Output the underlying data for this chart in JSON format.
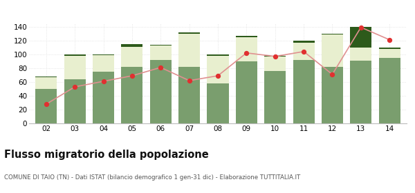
{
  "years": [
    "02",
    "03",
    "04",
    "05",
    "06",
    "07",
    "08",
    "09",
    "10",
    "11",
    "12",
    "13",
    "14"
  ],
  "altri_comuni": [
    50,
    64,
    75,
    82,
    92,
    82,
    58,
    90,
    76,
    92,
    82,
    91,
    95
  ],
  "estero": [
    17,
    34,
    24,
    29,
    21,
    48,
    40,
    35,
    21,
    25,
    47,
    19,
    13
  ],
  "altri": [
    1,
    2,
    1,
    4,
    1,
    2,
    2,
    2,
    1,
    3,
    1,
    30,
    2
  ],
  "cancellati": [
    28,
    53,
    61,
    69,
    81,
    62,
    69,
    102,
    97,
    104,
    71,
    139,
    121
  ],
  "color_altri_comuni": "#7a9e6e",
  "color_estero": "#e8efcf",
  "color_altri": "#2d5a1b",
  "color_cancellati": "#e03030",
  "color_line": "#e09090",
  "title": "Flusso migratorio della popolazione",
  "subtitle": "COMUNE DI TAIO (TN) - Dati ISTAT (bilancio demografico 1 gen-31 dic) - Elaborazione TUTTITALIA.IT",
  "ylim": [
    0,
    145
  ],
  "yticks": [
    0,
    20,
    40,
    60,
    80,
    100,
    120,
    140
  ],
  "bar_width": 0.75,
  "background_color": "#ffffff"
}
